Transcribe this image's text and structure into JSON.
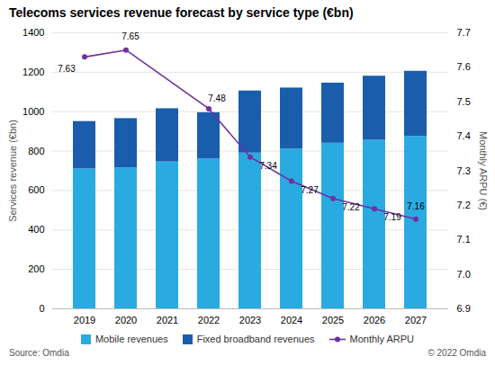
{
  "chart_data": {
    "type": "bar",
    "title": "Telecoms services revenue forecast by service type (€bn)",
    "categories": [
      "2019",
      "2020",
      "2021",
      "2022",
      "2023",
      "2024",
      "2025",
      "2026",
      "2027"
    ],
    "series": [
      {
        "name": "Mobile revenues",
        "color": "#29ABE2",
        "values": [
          710,
          715,
          745,
          760,
          790,
          810,
          840,
          855,
          875
        ]
      },
      {
        "name": "Fixed broadband revenues",
        "color": "#1A5DAD",
        "values": [
          240,
          250,
          270,
          235,
          315,
          310,
          305,
          325,
          330
        ]
      },
      {
        "name": "Monthly ARPU",
        "type": "line",
        "axis": "y2",
        "color": "#7030A0",
        "marker": "circle",
        "data_labels": true,
        "x": [
          "2019",
          "2020",
          "2022",
          "2023",
          "2024",
          "2025",
          "2026",
          "2027"
        ],
        "values": [
          7.63,
          7.65,
          7.48,
          7.34,
          7.27,
          7.22,
          7.19,
          7.16
        ]
      }
    ],
    "stacked": true,
    "ylabel": "Services revenue (€bn)",
    "y2label": "Monthly ARPU (€)",
    "ylim": [
      0,
      1400
    ],
    "yticks": [
      0,
      200,
      400,
      600,
      800,
      1000,
      1200,
      1400
    ],
    "y2lim": [
      6.9,
      7.7
    ],
    "y2ticks": [
      6.9,
      {
        "value": 7.0,
        "label": "7.0"
      },
      7.1,
      7.2,
      7.3,
      7.4,
      7.5,
      7.6,
      7.7
    ],
    "grid": true,
    "legend": "bottom",
    "annotations": [
      "Source: Omdia",
      "© 2022 Omdia"
    ]
  }
}
